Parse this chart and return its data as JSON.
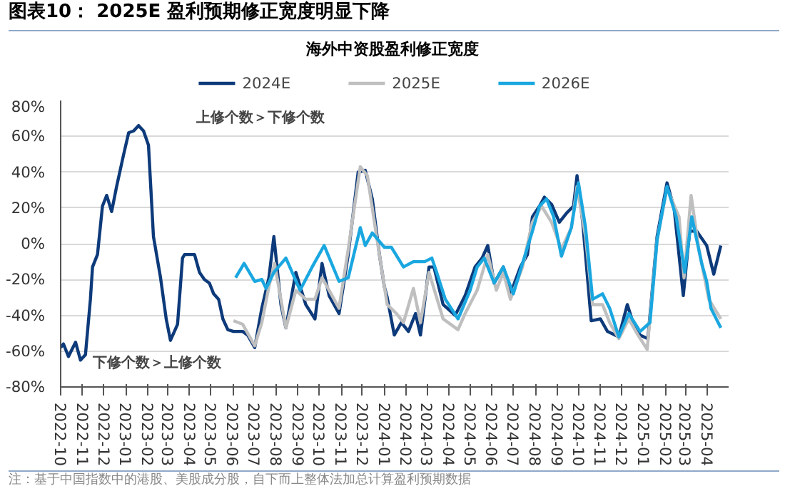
{
  "chart_data": {
    "type": "line",
    "title": "图表10： 2025E 盈利预期修正宽度明显下降",
    "subtitle": "海外中资股盈利修正宽度",
    "annotations": [
      "上修个数＞下修个数",
      "下修个数＞上修个数",
      "注：基于中国指数中的港股、美股成分股，自下而上整体法加总计算盈利预期数据"
    ],
    "xlim": [
      "2022-10-01",
      "2025-05-01"
    ],
    "xticks": [
      "2022-10",
      "2022-11",
      "2022-12",
      "2023-01",
      "2023-02",
      "2023-03",
      "2023-04",
      "2023-05",
      "2023-06",
      "2023-07",
      "2023-08",
      "2023-09",
      "2023-10",
      "2023-11",
      "2023-12",
      "2024-01",
      "2024-02",
      "2024-03",
      "2024-04",
      "2024-05",
      "2024-06",
      "2024-07",
      "2024-08",
      "2024-09",
      "2024-10",
      "2024-11",
      "2024-12",
      "2025-01",
      "2025-02",
      "2025-03",
      "2025-04"
    ],
    "ylim": [
      -80,
      80
    ],
    "yticks": [
      {
        "value": -80,
        "label": "-80%"
      },
      {
        "value": -60,
        "label": "-60%"
      },
      {
        "value": -40,
        "label": "-40%"
      },
      {
        "value": -20,
        "label": "-20%"
      },
      {
        "value": 0,
        "label": "0%"
      },
      {
        "value": 20,
        "label": "20%"
      },
      {
        "value": 40,
        "label": "40%"
      },
      {
        "value": 60,
        "label": "60%"
      },
      {
        "value": 80,
        "label": "80%"
      }
    ],
    "grid": "y",
    "legend": "top",
    "line_style": "solid",
    "series": [
      {
        "name": "2024E",
        "color": "#0d3a7a",
        "x": [
          "2022-10-01",
          "2022-10-05",
          "2022-10-12",
          "2022-10-22",
          "2022-10-29",
          "2022-11-05",
          "2022-11-12",
          "2022-11-15",
          "2022-11-22",
          "2022-11-29",
          "2022-12-05",
          "2022-12-12",
          "2022-12-19",
          "2022-12-29",
          "2023-01-05",
          "2023-01-12",
          "2023-01-19",
          "2023-01-26",
          "2023-02-02",
          "2023-02-09",
          "2023-02-19",
          "2023-02-27",
          "2023-03-05",
          "2023-03-15",
          "2023-03-22",
          "2023-03-25",
          "2023-04-08",
          "2023-04-15",
          "2023-04-22",
          "2023-04-29",
          "2023-05-05",
          "2023-05-12",
          "2023-05-18",
          "2023-05-25",
          "2023-06-02",
          "2023-06-15",
          "2023-06-22",
          "2023-07-02",
          "2023-07-12",
          "2023-07-22",
          "2023-07-29",
          "2023-08-08",
          "2023-08-15",
          "2023-08-29",
          "2023-09-12",
          "2023-09-25",
          "2023-10-05",
          "2023-10-15",
          "2023-10-29",
          "2023-11-11",
          "2023-11-25",
          "2023-12-05",
          "2023-12-15",
          "2023-12-25",
          "2024-01-01",
          "2024-01-05",
          "2024-01-15",
          "2024-01-25",
          "2024-02-04",
          "2024-02-14",
          "2024-02-21",
          "2024-03-04",
          "2024-03-11",
          "2024-03-24",
          "2024-04-10",
          "2024-04-24",
          "2024-05-08",
          "2024-05-18",
          "2024-05-26",
          "2024-06-04",
          "2024-06-17",
          "2024-06-27",
          "2024-07-11",
          "2024-07-21",
          "2024-07-28",
          "2024-08-07",
          "2024-08-14",
          "2024-08-24",
          "2024-09-04",
          "2024-09-14",
          "2024-09-24",
          "2024-09-29",
          "2024-10-07",
          "2024-10-19",
          "2024-11-01",
          "2024-11-11",
          "2024-11-27",
          "2024-12-09",
          "2024-12-17",
          "2024-12-27",
          "2025-01-07",
          "2025-01-20",
          "2025-02-03",
          "2025-02-13",
          "2025-02-26",
          "2025-03-07",
          "2025-03-17",
          "2025-03-31",
          "2025-04-10",
          "2025-04-20"
        ],
        "values": [
          -58,
          -56,
          -63,
          -55,
          -65,
          -62,
          -31,
          -13,
          -6,
          21,
          27,
          18,
          32,
          50,
          62,
          63,
          66,
          63,
          55,
          4,
          -19,
          -42,
          -54,
          -45,
          -8,
          -6,
          -6,
          -16,
          -20,
          -22,
          -28,
          -31,
          -42,
          -48,
          -49,
          -49,
          -51,
          -58,
          -36,
          -19,
          4,
          -34,
          -47,
          -16,
          -34,
          -42,
          -11,
          -29,
          -39,
          -6,
          40,
          41,
          25,
          -6,
          -24,
          -30,
          -51,
          -44,
          -49,
          -39,
          -51,
          -13,
          -13,
          -34,
          -40,
          -29,
          -13,
          -8,
          -1,
          -22,
          -13,
          -28,
          -13,
          -6,
          15,
          21,
          26,
          22,
          12,
          17,
          21,
          38,
          12,
          -43,
          -42,
          -49,
          -52,
          -34,
          -44,
          -51,
          -53,
          4,
          34,
          20,
          -29,
          7,
          7,
          -1,
          -17,
          -1
        ]
      },
      {
        "name": "2025E",
        "color": "#bfbfbf",
        "x": [
          "2023-06-02",
          "2023-06-15",
          "2023-07-02",
          "2023-07-12",
          "2023-07-22",
          "2023-07-30",
          "2023-08-15",
          "2023-08-29",
          "2023-09-12",
          "2023-09-25",
          "2023-10-05",
          "2023-10-15",
          "2023-10-29",
          "2023-11-11",
          "2023-11-28",
          "2023-12-08",
          "2023-12-21",
          "2024-01-05",
          "2024-01-18",
          "2024-01-28",
          "2024-02-11",
          "2024-02-21",
          "2024-03-04",
          "2024-03-24",
          "2024-04-14",
          "2024-04-24",
          "2024-05-11",
          "2024-05-26",
          "2024-06-07",
          "2024-06-17",
          "2024-06-27",
          "2024-07-14",
          "2024-07-28",
          "2024-08-10",
          "2024-08-24",
          "2024-09-07",
          "2024-09-21",
          "2024-09-29",
          "2024-10-11",
          "2024-10-21",
          "2024-11-04",
          "2024-11-14",
          "2024-11-27",
          "2024-12-11",
          "2024-12-24",
          "2025-01-06",
          "2025-01-20",
          "2025-02-03",
          "2025-02-20",
          "2025-02-27",
          "2025-03-09",
          "2025-03-20",
          "2025-04-03",
          "2025-04-20"
        ],
        "values": [
          -43,
          -45,
          -57,
          -44,
          -24,
          -11,
          -47,
          -26,
          -31,
          -31,
          -19,
          -26,
          -36,
          -3,
          43,
          38,
          4,
          -34,
          -39,
          -44,
          -25,
          -44,
          -16,
          -42,
          -48,
          -39,
          -26,
          -6,
          -26,
          -16,
          -31,
          -13,
          12,
          21,
          12,
          -3,
          9,
          32,
          4,
          -34,
          -34,
          -44,
          -53,
          -42,
          -51,
          -59,
          2,
          31,
          15,
          -19,
          27,
          -3,
          -31,
          -42
        ]
      },
      {
        "name": "2026E",
        "color": "#1aa7e0",
        "x": [
          "2023-06-05",
          "2023-06-17",
          "2023-07-02",
          "2023-07-12",
          "2023-07-18",
          "2023-07-29",
          "2023-08-15",
          "2023-09-04",
          "2023-09-21",
          "2023-10-08",
          "2023-10-29",
          "2023-11-11",
          "2023-11-28",
          "2023-12-05",
          "2023-12-15",
          "2024-01-01",
          "2024-01-11",
          "2024-01-28",
          "2024-02-11",
          "2024-02-27",
          "2024-03-08",
          "2024-03-14",
          "2024-03-27",
          "2024-04-14",
          "2024-05-01",
          "2024-05-11",
          "2024-05-21",
          "2024-06-04",
          "2024-06-17",
          "2024-07-01",
          "2024-07-14",
          "2024-07-28",
          "2024-08-07",
          "2024-08-17",
          "2024-08-27",
          "2024-09-07",
          "2024-09-21",
          "2024-10-01",
          "2024-10-11",
          "2024-10-21",
          "2024-11-04",
          "2024-11-14",
          "2024-11-27",
          "2024-12-11",
          "2024-12-27",
          "2025-01-10",
          "2025-01-20",
          "2025-02-03",
          "2025-02-16",
          "2025-02-28",
          "2025-03-10",
          "2025-03-24",
          "2025-03-31",
          "2025-04-06",
          "2025-04-20"
        ],
        "values": [
          -19,
          -11,
          -21,
          -20,
          -25,
          -16,
          -8,
          -26,
          -13,
          -1,
          -21,
          -19,
          9,
          -1,
          6,
          -2,
          -2,
          -13,
          -10,
          -10,
          -8,
          -15,
          -31,
          -42,
          -26,
          -13,
          -8,
          -22,
          -13,
          -28,
          -11,
          7,
          21,
          25,
          15,
          -7,
          9,
          34,
          9,
          -31,
          -28,
          -36,
          -52,
          -39,
          -49,
          -44,
          2,
          32,
          15,
          -16,
          15,
          -11,
          -21,
          -36,
          -47
        ]
      }
    ]
  }
}
